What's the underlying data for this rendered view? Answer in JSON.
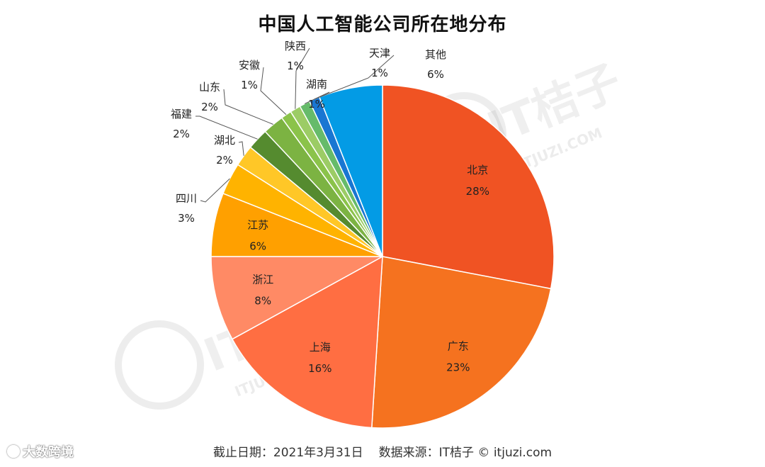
{
  "chart_data": {
    "type": "pie",
    "title": "中国人工智能公司所在地分布",
    "slices": [
      {
        "label": "北京",
        "value": 28,
        "display": "28%",
        "color": "#F05323"
      },
      {
        "label": "广东",
        "value": 23,
        "display": "23%",
        "color": "#F5721F"
      },
      {
        "label": "上海",
        "value": 16,
        "display": "16%",
        "color": "#FF6E42"
      },
      {
        "label": "浙江",
        "value": 8,
        "display": "8%",
        "color": "#FF8A65"
      },
      {
        "label": "江苏",
        "value": 6,
        "display": "6%",
        "color": "#FFA000"
      },
      {
        "label": "四川",
        "value": 3,
        "display": "3%",
        "color": "#FFB300"
      },
      {
        "label": "湖北",
        "value": 2,
        "display": "2%",
        "color": "#FFC727"
      },
      {
        "label": "福建",
        "value": 2,
        "display": "2%",
        "color": "#558B2F"
      },
      {
        "label": "山东",
        "value": 2,
        "display": "2%",
        "color": "#7CB342"
      },
      {
        "label": "安徽",
        "value": 1,
        "display": "1%",
        "color": "#8BC34A"
      },
      {
        "label": "陕西",
        "value": 1,
        "display": "1%",
        "color": "#9CCC65"
      },
      {
        "label": "湖南",
        "value": 1,
        "display": "1%",
        "color": "#66BB6A"
      },
      {
        "label": "天津",
        "value": 1,
        "display": "1%",
        "color": "#1976D2"
      },
      {
        "label": "其他",
        "value": 6,
        "display": "6%",
        "color": "#039BE5"
      }
    ],
    "start_angle": "12 o'clock",
    "direction": "clockwise",
    "legend": "none"
  },
  "footer": {
    "date_text": "截止日期：2021年3月31日",
    "source_text": "数据来源：IT桔子 © itjuzi.com"
  },
  "watermarks": {
    "brand": "IT桔子",
    "site": "ITJUZI.COM",
    "corner": "大数跨境"
  }
}
